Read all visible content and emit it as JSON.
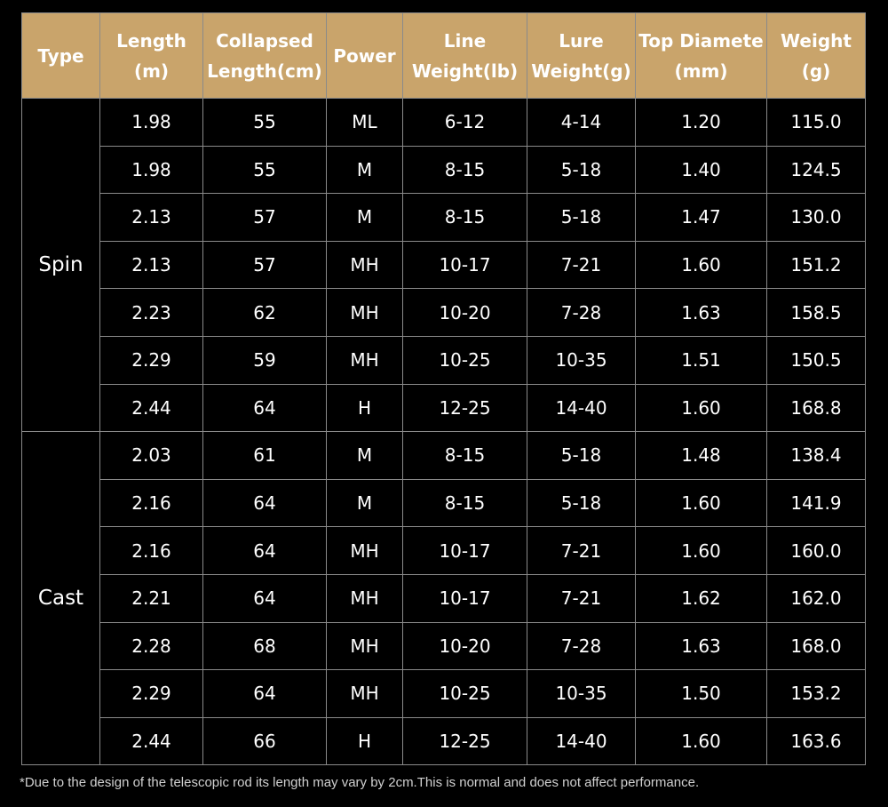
{
  "table": {
    "header": [
      [
        "Type"
      ],
      [
        "Length",
        "(m)"
      ],
      [
        "Collapsed",
        "Length(cm)"
      ],
      [
        "Power"
      ],
      [
        "Line",
        "Weight(lb)"
      ],
      [
        "Lure",
        "Weight(g)"
      ],
      [
        "Top Diamete",
        "(mm)"
      ],
      [
        "Weight",
        "(g)"
      ]
    ],
    "groups": [
      {
        "type": "Spin",
        "rows": [
          [
            "1.98",
            "55",
            "ML",
            "6-12",
            "4-14",
            "1.20",
            "115.0"
          ],
          [
            "1.98",
            "55",
            "M",
            "8-15",
            "5-18",
            "1.40",
            "124.5"
          ],
          [
            "2.13",
            "57",
            "M",
            "8-15",
            "5-18",
            "1.47",
            "130.0"
          ],
          [
            "2.13",
            "57",
            "MH",
            "10-17",
            "7-21",
            "1.60",
            "151.2"
          ],
          [
            "2.23",
            "62",
            "MH",
            "10-20",
            "7-28",
            "1.63",
            "158.5"
          ],
          [
            "2.29",
            "59",
            "MH",
            "10-25",
            "10-35",
            "1.51",
            "150.5"
          ],
          [
            "2.44",
            "64",
            "H",
            "12-25",
            "14-40",
            "1.60",
            "168.8"
          ]
        ]
      },
      {
        "type": "Cast",
        "rows": [
          [
            "2.03",
            "61",
            "M",
            "8-15",
            "5-18",
            "1.48",
            "138.4"
          ],
          [
            "2.16",
            "64",
            "M",
            "8-15",
            "5-18",
            "1.60",
            "141.9"
          ],
          [
            "2.16",
            "64",
            "MH",
            "10-17",
            "7-21",
            "1.60",
            "160.0"
          ],
          [
            "2.21",
            "64",
            "MH",
            "10-17",
            "7-21",
            "1.62",
            "162.0"
          ],
          [
            "2.28",
            "68",
            "MH",
            "10-20",
            "7-28",
            "1.63",
            "168.0"
          ],
          [
            "2.29",
            "64",
            "MH",
            "10-25",
            "10-35",
            "1.50",
            "153.2"
          ],
          [
            "2.44",
            "66",
            "H",
            "12-25",
            "14-40",
            "1.60",
            "163.6"
          ]
        ]
      }
    ]
  },
  "footnote": "*Due to the design of the telescopic rod its length may vary by 2cm.This is normal and does not affect performance."
}
